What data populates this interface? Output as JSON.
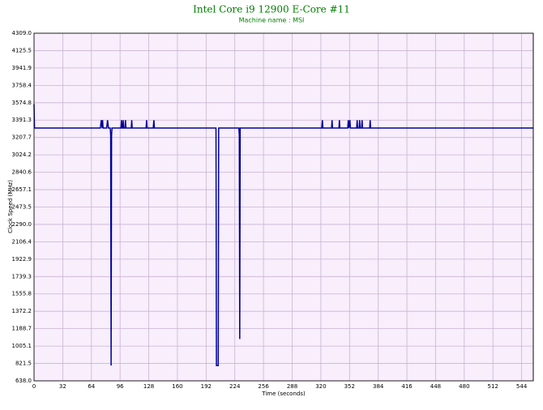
{
  "chart_data": {
    "type": "line",
    "title": "Intel Core i9 12900 E-Core #11",
    "subtitle": "Machine name : MSI",
    "x_label": "Time (seconds)",
    "y_label": "Clock Speed (MHz)",
    "color": "#00009c",
    "background": "#f8eefc",
    "grid": true,
    "xlim": [
      0,
      557
    ],
    "ylim": [
      638,
      4309
    ],
    "xticks": [
      0,
      32,
      64,
      96,
      128,
      160,
      192,
      224,
      256,
      288,
      320,
      352,
      384,
      416,
      448,
      480,
      512,
      544
    ],
    "yticks": [
      {
        "value": 638,
        "label": "638.0"
      },
      821.5,
      1005.1,
      1188.7,
      1372.2,
      1555.8,
      1739.3,
      1922.9,
      2106.4,
      {
        "value": 2290,
        "label": "2290.0"
      },
      2473.5,
      2657.1,
      2840.6,
      3024.2,
      3207.7,
      3391.3,
      3574.8,
      3758.4,
      3941.9,
      4125.5,
      {
        "value": 4309,
        "label": "4309.0"
      }
    ],
    "x": [
      0,
      0.5,
      74,
      75,
      76,
      76.5,
      77,
      78,
      81,
      82,
      83,
      85,
      85.5,
      86,
      86.5,
      87,
      97,
      97.6,
      98.2,
      99,
      99.5,
      100,
      101.5,
      102,
      102.5,
      108.5,
      109,
      109.5,
      125,
      125.6,
      126.2,
      133,
      133.7,
      134.3,
      202,
      203,
      203.5,
      205.5,
      206,
      228.5,
      229,
      229.5,
      230,
      321,
      321.7,
      322.3,
      332,
      332.5,
      333,
      340.2,
      340.7,
      341.2,
      350,
      350.6,
      351.2,
      352.4,
      353,
      360,
      360.5,
      361,
      362.8,
      363.3,
      363.8,
      365.5,
      366,
      366.5,
      374.5,
      375,
      375.5,
      557
    ],
    "values": [
      3560,
      3308,
      3308,
      3391,
      3308,
      3391,
      3308,
      3308,
      3308,
      3391,
      3308,
      3308,
      3230,
      800,
      3230,
      3308,
      3308,
      3391,
      3308,
      3308,
      3391,
      3308,
      3308,
      3391,
      3308,
      3308,
      3391,
      3308,
      3308,
      3391,
      3308,
      3308,
      3391,
      3308,
      3308,
      3308,
      800,
      800,
      3308,
      3308,
      3230,
      1080,
      3308,
      3308,
      3391,
      3308,
      3308,
      3391,
      3308,
      3308,
      3391,
      3308,
      3308,
      3391,
      3308,
      3391,
      3308,
      3308,
      3391,
      3308,
      3308,
      3391,
      3308,
      3308,
      3391,
      3308,
      3308,
      3391,
      3308,
      3308
    ]
  }
}
